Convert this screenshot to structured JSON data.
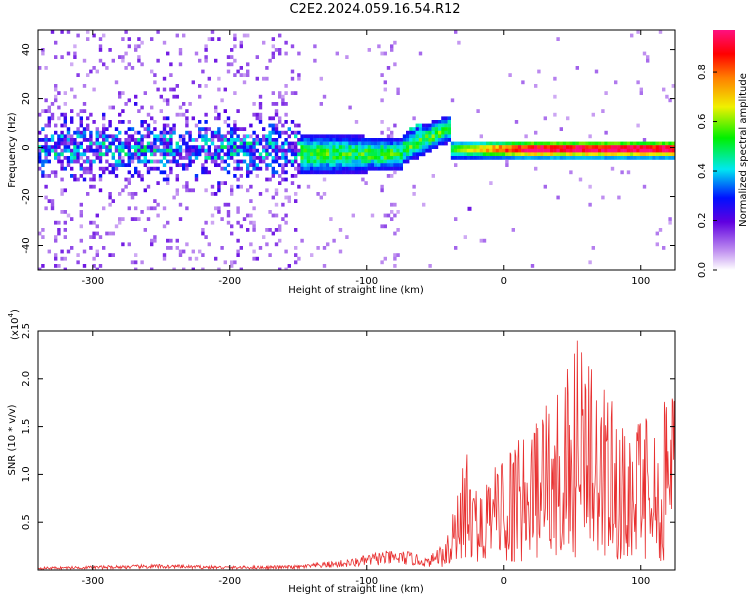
{
  "title": "C2E2.2024.059.16.54.R12",
  "chart_data": [
    {
      "type": "heatmap",
      "xlabel": "Height of straight line (km)",
      "ylabel": "Frequency (Hz)",
      "xlim": [
        -340,
        125
      ],
      "ylim": [
        -50,
        48
      ],
      "x_ticks": [
        -300,
        -200,
        -100,
        0,
        100
      ],
      "y_ticks": [
        -40,
        -20,
        0,
        20,
        40
      ],
      "colorbar": {
        "label": "Normalized spectral amplitude",
        "range": [
          0.0,
          0.97
        ],
        "ticks": [
          0.0,
          0.2,
          0.4,
          0.6,
          0.8
        ],
        "colormap": "rainbow (white-purple-blue-cyan-green-yellow-orange-red-magenta)"
      },
      "features": [
        {
          "region": "x -340 to -150",
          "freq_spread": [
            -50,
            48
          ],
          "amplitude": 0.15,
          "description": "wide scattered low-amplitude noise"
        },
        {
          "region": "x -340 to -150",
          "freq_band": [
            -15,
            10
          ],
          "amplitude": 0.25,
          "description": "dense band near 0 Hz"
        },
        {
          "region": "x -150 to -40",
          "freq_band": [
            -12,
            8
          ],
          "amplitude": 0.4,
          "description": "narrowing band with cyan core"
        },
        {
          "region": "x -40 to 125",
          "freq_band": [
            -3,
            3
          ],
          "amplitude": 0.9,
          "description": "narrow band at 0 Hz, red core"
        }
      ]
    },
    {
      "type": "line",
      "xlabel": "Height of straight line (km)",
      "ylabel": "SNR (10 * v/v)",
      "y_multiplier": "(x10",
      "y_multiplier_exp": "4",
      "y_multiplier_close": ")",
      "xlim": [
        -340,
        125
      ],
      "ylim": [
        0,
        2.5
      ],
      "x_ticks": [
        -300,
        -200,
        -100,
        0,
        100
      ],
      "y_ticks": [
        0.5,
        1.0,
        1.5,
        2.0,
        2.5
      ],
      "y_tick_labels": [
        "0.5",
        "1.0",
        "1.5",
        "2.0",
        "2.5"
      ],
      "color": "#e83030",
      "envelope": [
        {
          "x": -340,
          "y": 0.03
        },
        {
          "x": -250,
          "y": 0.06
        },
        {
          "x": -200,
          "y": 0.04
        },
        {
          "x": -150,
          "y": 0.05
        },
        {
          "x": -110,
          "y": 0.12
        },
        {
          "x": -90,
          "y": 0.2
        },
        {
          "x": -70,
          "y": 0.2
        },
        {
          "x": -55,
          "y": 0.12
        },
        {
          "x": -45,
          "y": 0.3
        },
        {
          "x": -35,
          "y": 0.7
        },
        {
          "x": -28,
          "y": 1.3
        },
        {
          "x": -15,
          "y": 1.0
        },
        {
          "x": 0,
          "y": 1.2
        },
        {
          "x": 20,
          "y": 1.5
        },
        {
          "x": 40,
          "y": 2.0
        },
        {
          "x": 55,
          "y": 2.5
        },
        {
          "x": 70,
          "y": 2.0
        },
        {
          "x": 90,
          "y": 1.5
        },
        {
          "x": 110,
          "y": 1.7
        },
        {
          "x": 125,
          "y": 1.9
        }
      ]
    }
  ],
  "colors": {
    "series": "#e83030",
    "band_core_right": "#ff2222",
    "band_mid": "#00e0f0",
    "band_outer": "#3010d8",
    "noise": "#a070ee"
  }
}
